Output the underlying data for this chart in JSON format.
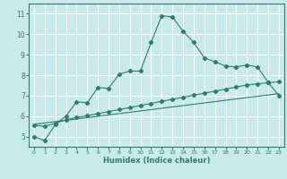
{
  "title": "",
  "xlabel": "Humidex (Indice chaleur)",
  "background_color": "#c8eaea",
  "grid_color": "#ffffff",
  "line_color": "#2e7d6e",
  "xlim": [
    -0.5,
    23.5
  ],
  "ylim": [
    4.5,
    11.5
  ],
  "xticks": [
    0,
    1,
    2,
    3,
    4,
    5,
    6,
    7,
    8,
    9,
    10,
    11,
    12,
    13,
    14,
    15,
    16,
    17,
    18,
    19,
    20,
    21,
    22,
    23
  ],
  "yticks": [
    5,
    6,
    7,
    8,
    9,
    10,
    11
  ],
  "line1_x": [
    0,
    1,
    2,
    3,
    4,
    5,
    6,
    7,
    8,
    9,
    10,
    11,
    12,
    13,
    14,
    15,
    16,
    17,
    18,
    19,
    20,
    21,
    22,
    23
  ],
  "line1_y": [
    5.0,
    4.8,
    5.6,
    6.0,
    6.7,
    6.65,
    7.4,
    7.35,
    8.05,
    8.2,
    8.2,
    9.6,
    10.9,
    10.85,
    10.15,
    9.6,
    8.85,
    8.65,
    8.45,
    8.4,
    8.5,
    8.4,
    7.65,
    7.0
  ],
  "line2_x": [
    0,
    1,
    2,
    3,
    4,
    5,
    6,
    7,
    8,
    9,
    10,
    11,
    12,
    13,
    14,
    15,
    16,
    17,
    18,
    19,
    20,
    21,
    22,
    23
  ],
  "line2_y": [
    5.55,
    5.5,
    5.65,
    5.82,
    5.93,
    6.02,
    6.12,
    6.22,
    6.32,
    6.42,
    6.52,
    6.62,
    6.72,
    6.82,
    6.92,
    7.02,
    7.12,
    7.22,
    7.32,
    7.42,
    7.52,
    7.58,
    7.63,
    7.68
  ],
  "line3_x": [
    0,
    23
  ],
  "line3_y": [
    5.6,
    7.1
  ]
}
